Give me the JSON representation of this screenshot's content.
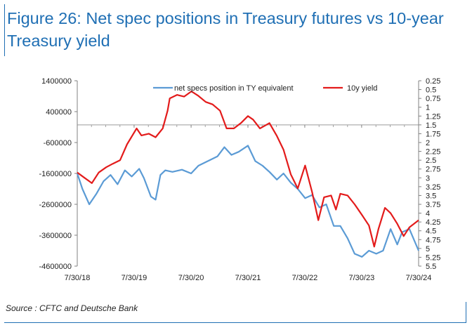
{
  "header": {
    "title": "Figure 26: Net spec positions in Treasury futures vs 10-year Treasury yield"
  },
  "footer": {
    "source": "Source : CFTC and Deutsche Bank"
  },
  "colors": {
    "title": "#1f6fb4",
    "series_spec": "#5b9bd5",
    "series_yield": "#e31b1b",
    "axis": "#808080"
  },
  "chart_data": {
    "type": "line",
    "dual_axis": true,
    "title": "",
    "xlabel": "",
    "ylabel_left": "",
    "ylabel_right": "",
    "x_tick_labels": [
      "7/30/18",
      "7/30/19",
      "7/30/20",
      "7/30/21",
      "7/30/22",
      "7/30/23",
      "7/30/24"
    ],
    "x_range": [
      "2018-07-30",
      "2024-07-30"
    ],
    "y_left": {
      "ticks": [
        1400000,
        400000,
        -600000,
        -1600000,
        -2600000,
        -3600000,
        -4600000
      ],
      "range": [
        -4600000,
        1400000
      ]
    },
    "y_right": {
      "inverted": true,
      "ticks": [
        0.25,
        0.5,
        0.75,
        1,
        1.25,
        1.5,
        1.75,
        2,
        2.25,
        2.5,
        2.75,
        3,
        3.25,
        3.5,
        3.75,
        4,
        4.25,
        4.5,
        4.75,
        5,
        5.25,
        5.5
      ],
      "range": [
        0.25,
        5.5
      ]
    },
    "legend_position": "top",
    "series": [
      {
        "name": "net specs position in TY equivalent",
        "axis": "left",
        "color": "#5b9bd5",
        "points": [
          [
            "2018-07-30",
            -1600000
          ],
          [
            "2018-09-01",
            -2100000
          ],
          [
            "2018-10-15",
            -2600000
          ],
          [
            "2018-12-01",
            -2250000
          ],
          [
            "2019-01-15",
            -1850000
          ],
          [
            "2019-03-01",
            -1650000
          ],
          [
            "2019-04-15",
            -1950000
          ],
          [
            "2019-06-01",
            -1500000
          ],
          [
            "2019-07-15",
            -1700000
          ],
          [
            "2019-09-01",
            -1450000
          ],
          [
            "2019-10-01",
            -1750000
          ],
          [
            "2019-11-15",
            -2350000
          ],
          [
            "2019-12-15",
            -2450000
          ],
          [
            "2020-01-15",
            -1650000
          ],
          [
            "2020-02-15",
            -1500000
          ],
          [
            "2020-04-01",
            -1550000
          ],
          [
            "2020-06-01",
            -1480000
          ],
          [
            "2020-07-30",
            -1600000
          ],
          [
            "2020-09-15",
            -1350000
          ],
          [
            "2020-11-15",
            -1200000
          ],
          [
            "2021-01-15",
            -1050000
          ],
          [
            "2021-03-01",
            -750000
          ],
          [
            "2021-04-15",
            -1000000
          ],
          [
            "2021-06-01",
            -900000
          ],
          [
            "2021-07-30",
            -700000
          ],
          [
            "2021-09-15",
            -1200000
          ],
          [
            "2021-11-01",
            -1350000
          ],
          [
            "2021-12-15",
            -1550000
          ],
          [
            "2022-02-01",
            -1800000
          ],
          [
            "2022-03-15",
            -1600000
          ],
          [
            "2022-05-01",
            -1900000
          ],
          [
            "2022-06-15",
            -2100000
          ],
          [
            "2022-08-01",
            -2400000
          ],
          [
            "2022-09-15",
            -2300000
          ],
          [
            "2022-11-01",
            -2700000
          ],
          [
            "2022-12-15",
            -2600000
          ],
          [
            "2023-02-01",
            -3300000
          ],
          [
            "2023-03-15",
            -3300000
          ],
          [
            "2023-05-01",
            -3700000
          ],
          [
            "2023-06-15",
            -4200000
          ],
          [
            "2023-08-01",
            -4300000
          ],
          [
            "2023-09-15",
            -4100000
          ],
          [
            "2023-11-01",
            -4200000
          ],
          [
            "2023-12-15",
            -4100000
          ],
          [
            "2024-02-01",
            -3400000
          ],
          [
            "2024-03-15",
            -3900000
          ],
          [
            "2024-04-15",
            -3500000
          ],
          [
            "2024-06-01",
            -3400000
          ],
          [
            "2024-07-30",
            -4100000
          ]
        ]
      },
      {
        "name": "10y yield",
        "axis": "right",
        "color": "#e31b1b",
        "points": [
          [
            "2018-07-30",
            2.85
          ],
          [
            "2018-09-15",
            3.0
          ],
          [
            "2018-11-01",
            3.15
          ],
          [
            "2018-12-15",
            2.85
          ],
          [
            "2019-02-01",
            2.7
          ],
          [
            "2019-03-15",
            2.6
          ],
          [
            "2019-05-01",
            2.5
          ],
          [
            "2019-06-15",
            2.05
          ],
          [
            "2019-08-15",
            1.6
          ],
          [
            "2019-09-15",
            1.8
          ],
          [
            "2019-11-01",
            1.75
          ],
          [
            "2019-12-15",
            1.85
          ],
          [
            "2020-01-30",
            1.6
          ],
          [
            "2020-03-01",
            1.1
          ],
          [
            "2020-03-15",
            0.75
          ],
          [
            "2020-05-01",
            0.65
          ],
          [
            "2020-06-15",
            0.7
          ],
          [
            "2020-08-01",
            0.55
          ],
          [
            "2020-09-15",
            0.68
          ],
          [
            "2020-11-01",
            0.85
          ],
          [
            "2020-12-15",
            0.92
          ],
          [
            "2021-02-01",
            1.1
          ],
          [
            "2021-03-15",
            1.6
          ],
          [
            "2021-05-01",
            1.6
          ],
          [
            "2021-06-15",
            1.45
          ],
          [
            "2021-07-30",
            1.25
          ],
          [
            "2021-09-01",
            1.35
          ],
          [
            "2021-10-15",
            1.6
          ],
          [
            "2021-12-15",
            1.45
          ],
          [
            "2022-01-30",
            1.8
          ],
          [
            "2022-03-15",
            2.2
          ],
          [
            "2022-05-01",
            2.9
          ],
          [
            "2022-06-15",
            3.3
          ],
          [
            "2022-08-01",
            2.65
          ],
          [
            "2022-09-15",
            3.4
          ],
          [
            "2022-10-25",
            4.2
          ],
          [
            "2022-12-01",
            3.55
          ],
          [
            "2023-01-15",
            3.5
          ],
          [
            "2023-02-15",
            3.9
          ],
          [
            "2023-03-15",
            3.45
          ],
          [
            "2023-05-01",
            3.5
          ],
          [
            "2023-06-15",
            3.75
          ],
          [
            "2023-08-01",
            4.05
          ],
          [
            "2023-09-15",
            4.35
          ],
          [
            "2023-10-19",
            4.95
          ],
          [
            "2023-11-15",
            4.45
          ],
          [
            "2023-12-27",
            3.85
          ],
          [
            "2024-02-01",
            4.0
          ],
          [
            "2024-03-15",
            4.3
          ],
          [
            "2024-04-25",
            4.65
          ],
          [
            "2024-06-01",
            4.4
          ],
          [
            "2024-07-30",
            4.2
          ]
        ]
      }
    ]
  }
}
